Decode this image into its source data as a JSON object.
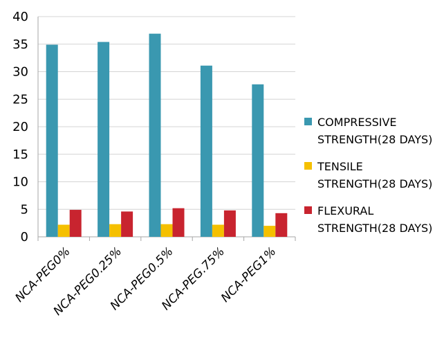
{
  "chart_data": {
    "type": "bar",
    "title": "",
    "xlabel": "",
    "ylabel": "",
    "categories": [
      "NCA-PEG0%",
      "NCA-PEG0.25%",
      "NCA-PEG0.5%",
      "NCA-PEG.75%",
      "NCA-PEG1%"
    ],
    "series": [
      {
        "name": "COMPRESSIVE\nSTRENGTH(28 DAYS)",
        "color": "#3a98b0",
        "values": [
          34.9,
          35.4,
          36.9,
          31.1,
          27.7
        ]
      },
      {
        "name": "TENSILE\nSTRENGTH(28 DAYS)",
        "color": "#f5c000",
        "values": [
          2.2,
          2.3,
          2.3,
          2.2,
          2.0
        ]
      },
      {
        "name": "FLEXURAL\nSTRENGTH(28 DAYS)",
        "color": "#c8242f",
        "values": [
          4.9,
          4.6,
          5.2,
          4.8,
          4.3
        ]
      }
    ],
    "ylim": [
      0,
      40
    ],
    "yticks": [
      0,
      5,
      10,
      15,
      20,
      25,
      30,
      35,
      40
    ],
    "grid": true,
    "legend_position": "right"
  }
}
